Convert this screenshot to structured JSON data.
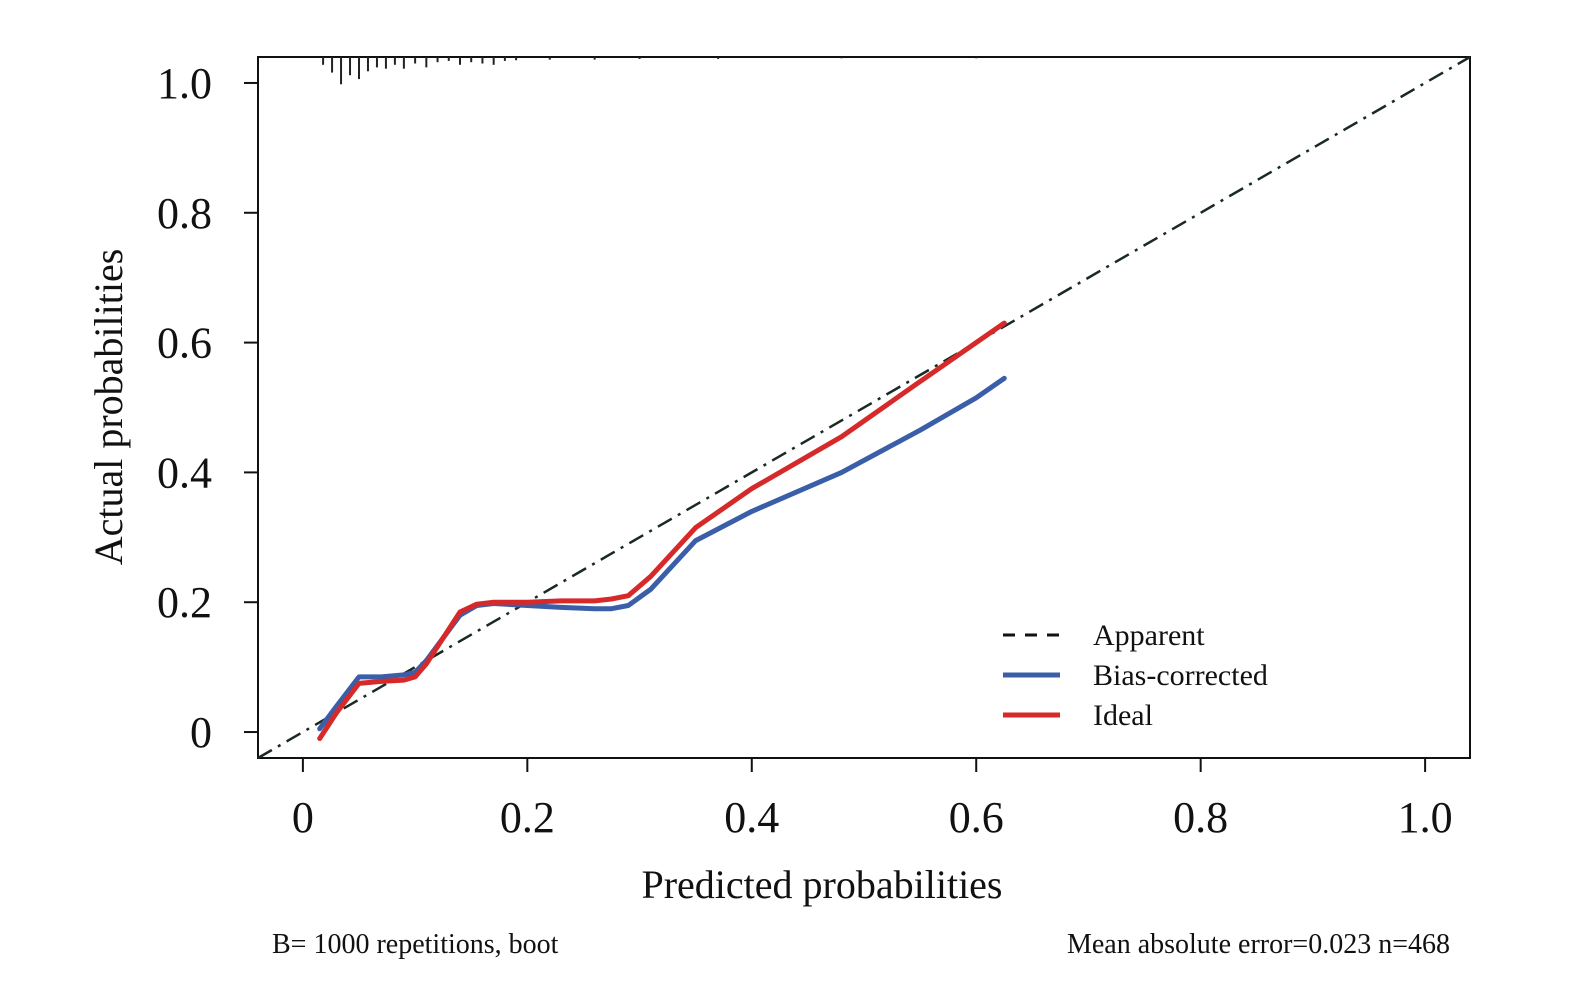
{
  "chart_data": {
    "type": "line",
    "xlabel": "Predicted probabilities",
    "ylabel": "Actual probabilities",
    "xlim": [
      -0.04,
      1.04
    ],
    "ylim": [
      -0.04,
      1.04
    ],
    "x_ticks": [
      0,
      0.2,
      0.4,
      0.6,
      0.8,
      1.0
    ],
    "x_tick_labels": [
      "0",
      "0.2",
      "0.4",
      "0.6",
      "0.8",
      "1.0"
    ],
    "y_ticks": [
      0,
      0.2,
      0.4,
      0.6,
      0.8,
      1.0
    ],
    "y_tick_labels": [
      "0",
      "0.2",
      "0.4",
      "0.6",
      "0.8",
      "1.0"
    ],
    "grid": false,
    "legend_position": "bottom-right",
    "series": [
      {
        "name": "Apparent",
        "style": "dashed",
        "color": "#1a2a22",
        "x": [
          -0.04,
          1.04
        ],
        "y": [
          -0.04,
          1.04
        ]
      },
      {
        "name": "Bias-corrected",
        "style": "solid",
        "color": "#3a5fa8",
        "x": [
          0.015,
          0.03,
          0.05,
          0.07,
          0.09,
          0.1,
          0.11,
          0.14,
          0.155,
          0.17,
          0.2,
          0.23,
          0.26,
          0.275,
          0.29,
          0.31,
          0.35,
          0.4,
          0.48,
          0.55,
          0.6,
          0.625
        ],
        "y": [
          0.005,
          0.04,
          0.085,
          0.085,
          0.088,
          0.092,
          0.11,
          0.18,
          0.195,
          0.198,
          0.195,
          0.192,
          0.19,
          0.19,
          0.195,
          0.22,
          0.295,
          0.34,
          0.4,
          0.465,
          0.515,
          0.545
        ]
      },
      {
        "name": "Ideal",
        "style": "solid",
        "color": "#d62a2a",
        "x": [
          0.015,
          0.03,
          0.05,
          0.07,
          0.09,
          0.1,
          0.11,
          0.14,
          0.155,
          0.17,
          0.2,
          0.23,
          0.26,
          0.275,
          0.29,
          0.31,
          0.35,
          0.4,
          0.48,
          0.55,
          0.6,
          0.625
        ],
        "y": [
          -0.01,
          0.03,
          0.075,
          0.078,
          0.08,
          0.085,
          0.105,
          0.185,
          0.197,
          0.2,
          0.2,
          0.202,
          0.202,
          0.205,
          0.21,
          0.24,
          0.315,
          0.375,
          0.455,
          0.54,
          0.6,
          0.63
        ]
      }
    ],
    "rug": {
      "x": [
        0.018,
        0.026,
        0.034,
        0.042,
        0.05,
        0.058,
        0.066,
        0.074,
        0.082,
        0.09,
        0.1,
        0.11,
        0.12,
        0.13,
        0.14,
        0.15,
        0.16,
        0.17,
        0.18,
        0.19,
        0.22,
        0.26,
        0.3,
        0.37,
        0.48,
        0.6
      ],
      "len": [
        0.012,
        0.024,
        0.042,
        0.028,
        0.034,
        0.022,
        0.016,
        0.018,
        0.012,
        0.018,
        0.01,
        0.016,
        0.008,
        0.006,
        0.012,
        0.008,
        0.01,
        0.012,
        0.006,
        0.005,
        0.004,
        0.004,
        0.003,
        0.003,
        0.002,
        0.002
      ]
    }
  },
  "footer": {
    "left": "B= 1000 repetitions, boot",
    "right": "Mean absolute error=0.023 n=468"
  }
}
